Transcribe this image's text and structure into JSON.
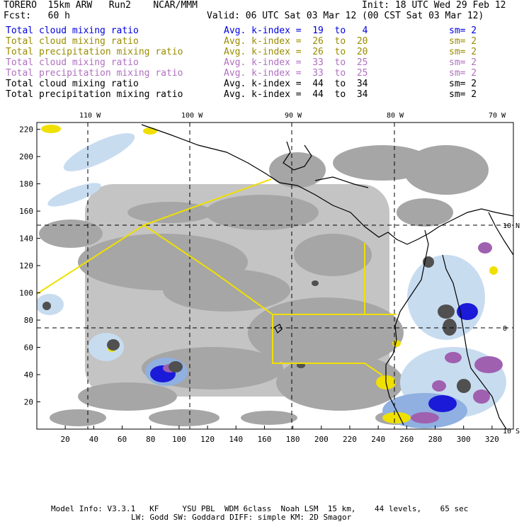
{
  "header": {
    "model_line": "TORERO  15km ARW   Run2    NCAR/MMM",
    "init": "Init: 18 UTC Wed 29 Feb 12",
    "fcst": "Fcst:   60 h",
    "valid": "Valid: 06 UTC Sat 03 Mar 12 (00 CST Sat 03 Mar 12)"
  },
  "legend": [
    {
      "field": "Total cloud mixing ratio",
      "index": "Avg. k-index =  19  to   4",
      "sm": "sm= 2",
      "color": "#0000dd"
    },
    {
      "field": "Total cloud mixing ratio",
      "index": "Avg. k-index =  26  to  20",
      "sm": "sm= 2",
      "color": "#9a8c00"
    },
    {
      "field": "Total precipitation mixing ratio",
      "index": "Avg. k-index =  26  to  20",
      "sm": "sm= 2",
      "color": "#9a8c00"
    },
    {
      "field": "Total cloud mixing ratio",
      "index": "Avg. k-index =  33  to  25",
      "sm": "sm= 2",
      "color": "#b070c0"
    },
    {
      "field": "Total precipitation mixing ratio",
      "index": "Avg. k-index =  33  to  25",
      "sm": "sm= 2",
      "color": "#b070c0"
    },
    {
      "field": "Total cloud mixing ratio",
      "index": "Avg. k-index =  44  to  34",
      "sm": "sm= 2",
      "color": "#000000"
    },
    {
      "field": "Total precipitation mixing ratio",
      "index": "Avg. k-index =  44  to  34",
      "sm": "sm= 2",
      "color": "#000000"
    }
  ],
  "axes": {
    "lon_labels": [
      "110 W",
      "100 W",
      "90 W",
      "80 W",
      "70 W"
    ],
    "lat_labels": [
      "10 N",
      "0",
      "10 S"
    ],
    "x_ticks": [
      "20",
      "40",
      "60",
      "80",
      "100",
      "120",
      "140",
      "160",
      "180",
      "200",
      "220",
      "240",
      "260",
      "280",
      "300",
      "320"
    ],
    "y_ticks": [
      "220",
      "200",
      "180",
      "160",
      "140",
      "120",
      "100",
      "80",
      "60",
      "40",
      "20"
    ],
    "x_range": [
      0,
      335
    ],
    "y_range": [
      0,
      225
    ]
  },
  "colors": {
    "cloud_gray": "#a6a6a6",
    "dark_gray": "#505050",
    "light_blue": "#c8dcf0",
    "mid_blue": "#8fb0e0",
    "blue": "#1a1ad8",
    "purple": "#a060b0",
    "yellow": "#f0e000",
    "boundary": "#f0e000"
  },
  "footer": {
    "line1": "Model Info: V3.3.1   KF     YSU PBL  WDM 6class  Noah LSM  15 km,    44 levels,    65 sec",
    "line2": "LW: Godd SW: Goddard DIFF: simple KM: 2D Smagor"
  }
}
